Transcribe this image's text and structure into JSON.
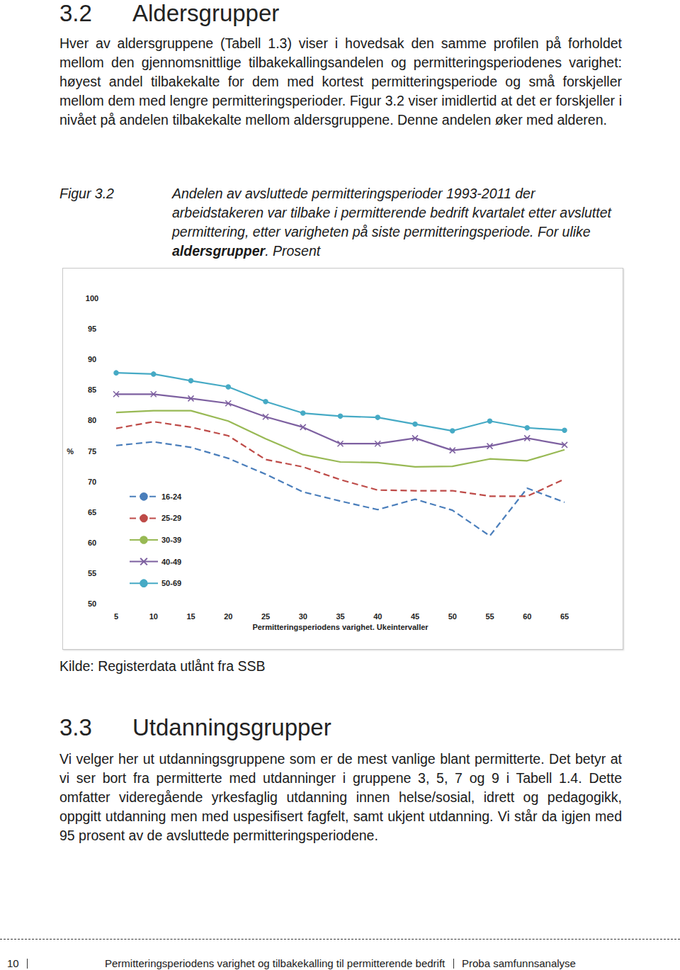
{
  "section1": {
    "number": "3.2",
    "title": "Aldersgrupper"
  },
  "paragraph1": "Hver av aldersgruppene (Tabell 1.3) viser i hovedsak den samme profilen på forholdet mellom den gjennomsnittlige tilbakekallingsandelen og permitterings­periodenes varighet: høyest andel tilbakekalte for dem med kortest permitteringsperiode og små forskjeller mellom dem med lengre permitteringsperioder. Figur 3.2 viser imidlertid at det er forskjeller i nivået på andelen tilbakekalte mellom aldersgruppene. Denne andelen øker med alderen.",
  "figure": {
    "label": "Figur 3.2",
    "caption_before": "Andelen av avsluttede permitteringsperioder 1993-2011 der arbeidstakeren var tilbake i permitterende bedrift kvartalet etter avsluttet permittering, etter varigheten på siste permitteringsperiode. For ulike ",
    "caption_bold": "aldersgrupper",
    "caption_after": ". Prosent",
    "source": "Kilde: Registerdata utlånt fra SSB"
  },
  "chart_data": {
    "type": "line",
    "x_label": "Permitteringsperiodens varighet. Ukeintervaller",
    "y_label": "%",
    "x": [
      5,
      10,
      15,
      20,
      25,
      30,
      35,
      40,
      45,
      50,
      55,
      60,
      65
    ],
    "xlim": [
      5,
      65
    ],
    "xticks": [
      5,
      10,
      15,
      20,
      25,
      30,
      35,
      40,
      45,
      50,
      55,
      60,
      65
    ],
    "ylim": [
      50,
      100
    ],
    "yticks": [
      50,
      55,
      60,
      65,
      70,
      75,
      80,
      85,
      90,
      95,
      100
    ],
    "grid": false,
    "legend": "lower left",
    "series": [
      {
        "name": "16-24",
        "color": "#4a7ebb",
        "line_style": "dashed",
        "marker": "none",
        "values": [
          75.9,
          76.5,
          75.6,
          73.8,
          71.2,
          68.3,
          66.8,
          65.4,
          67.1,
          65.3,
          61.1,
          68.9,
          66.6
        ]
      },
      {
        "name": "25-29",
        "color": "#be4b48",
        "line_style": "dashed",
        "marker": "none",
        "values": [
          78.7,
          79.8,
          78.9,
          77.5,
          73.6,
          72.4,
          70.3,
          68.6,
          68.5,
          68.5,
          67.6,
          67.6,
          70.4
        ]
      },
      {
        "name": "30-39",
        "color": "#98b954",
        "line_style": "solid",
        "marker": "none",
        "values": [
          81.3,
          81.6,
          81.6,
          79.9,
          77.0,
          74.4,
          73.2,
          73.1,
          72.4,
          72.5,
          73.7,
          73.4,
          75.2
        ]
      },
      {
        "name": "40-49",
        "color": "#7d60a0",
        "line_style": "solid",
        "marker": "cross",
        "values": [
          84.3,
          84.3,
          83.6,
          82.8,
          80.6,
          78.9,
          76.2,
          76.2,
          77.1,
          75.1,
          75.8,
          77.1,
          76.0
        ]
      },
      {
        "name": "50-69",
        "color": "#46aac5",
        "line_style": "solid",
        "marker": "circle",
        "values": [
          87.8,
          87.6,
          86.5,
          85.5,
          83.1,
          81.2,
          80.7,
          80.5,
          79.4,
          78.3,
          79.9,
          78.8,
          78.4
        ]
      }
    ]
  },
  "section2": {
    "number": "3.3",
    "title": "Utdanningsgrupper"
  },
  "paragraph2": "Vi velger her ut utdanningsgruppene som er de mest vanlige blant permitterte. Det betyr at vi ser bort fra permitterte med utdanninger i gruppene 3, 5, 7 og 9 i Tabell 1.4. Dette omfatter videregående yrkesfaglig utdanning innen helse/sosial, idrett og pedagogikk, oppgitt utdanning men med uspesifisert fagfelt, samt ukjent utdanning. Vi står da igjen med 95 prosent av de avsluttede permitteringsperiodene.",
  "footer": {
    "page": "10",
    "title": "Permitteringsperiodens varighet og tilbakekalling til permitterende bedrift",
    "publisher": "Proba samfunnsanalyse"
  }
}
